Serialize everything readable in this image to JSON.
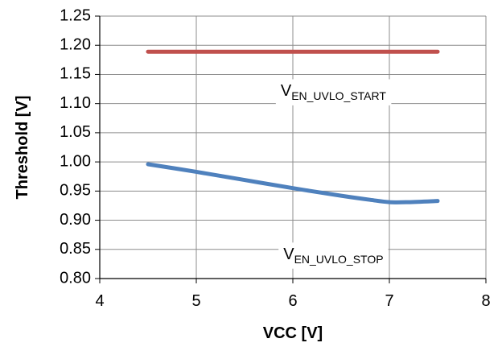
{
  "chart_data": {
    "type": "line",
    "xlabel": "VCC [V]",
    "ylabel": "Threshold [V]",
    "xlim": [
      4,
      8
    ],
    "ylim": [
      0.8,
      1.25
    ],
    "xticks": [
      4,
      5,
      6,
      7,
      8
    ],
    "xtick_labels": [
      "4",
      "5",
      "6",
      "7",
      "8"
    ],
    "yticks": [
      0.8,
      0.85,
      0.9,
      0.95,
      1.0,
      1.05,
      1.1,
      1.15,
      1.2,
      1.25
    ],
    "ytick_labels": [
      "0.80",
      "0.85",
      "0.90",
      "0.95",
      "1.00",
      "1.05",
      "1.10",
      "1.15",
      "1.20",
      "1.25"
    ],
    "grid": true,
    "series": [
      {
        "color": "#c0504d",
        "x": [
          4.5,
          5.0,
          5.5,
          6.0,
          6.5,
          7.0,
          7.5
        ],
        "y": [
          1.189,
          1.189,
          1.189,
          1.189,
          1.189,
          1.189,
          1.189
        ]
      },
      {
        "color": "#4f81bd",
        "x": [
          4.5,
          5.0,
          5.5,
          6.0,
          6.5,
          6.8,
          7.0,
          7.2,
          7.5
        ],
        "y": [
          0.996,
          0.983,
          0.969,
          0.955,
          0.942,
          0.935,
          0.931,
          0.931,
          0.933
        ]
      }
    ],
    "annotations": [
      {
        "main": "V",
        "sub": "EN_UVLO_START",
        "x": 6.42,
        "y": 1.12
      },
      {
        "main": "V",
        "sub": "EN_UVLO_STOP",
        "x": 6.42,
        "y": 0.84
      }
    ]
  }
}
